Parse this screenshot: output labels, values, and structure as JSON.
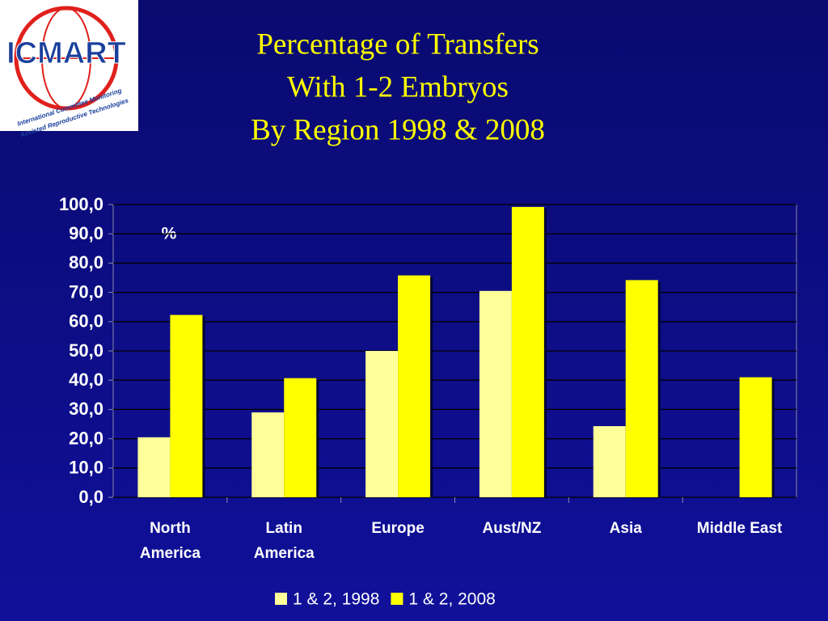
{
  "logo": {
    "name": "ICMART",
    "text": [
      "International Committee Monitoring",
      "Assisted Reproductive Technologies"
    ]
  },
  "chart_data": {
    "type": "bar",
    "title": [
      "Percentage of Transfers",
      "With 1-2 Embryos",
      "By Region 1998 & 2008"
    ],
    "annotation": "%",
    "categories": [
      [
        "North",
        "America"
      ],
      [
        "Latin",
        "America"
      ],
      [
        "Europe"
      ],
      [
        "Aust/NZ"
      ],
      [
        "Asia"
      ],
      [
        "Middle East"
      ]
    ],
    "series": [
      {
        "name": "1 & 2, 1998",
        "color": "#ffff99",
        "values": [
          20.5,
          29,
          50,
          70.5,
          24.3,
          null
        ]
      },
      {
        "name": "1 & 2, 2008",
        "color": "#ffff00",
        "values": [
          62.3,
          40.7,
          75.8,
          99.2,
          74.2,
          41
        ]
      }
    ],
    "ylim": [
      0,
      100
    ],
    "yticks": [
      {
        "value": 0,
        "label": "0,0"
      },
      {
        "value": 10,
        "label": "10,0"
      },
      {
        "value": 20,
        "label": "20,0"
      },
      {
        "value": 30,
        "label": "30,0"
      },
      {
        "value": 40,
        "label": "40,0"
      },
      {
        "value": 50,
        "label": "50,0"
      },
      {
        "value": 60,
        "label": "60,0"
      },
      {
        "value": 70,
        "label": "70,0"
      },
      {
        "value": 80,
        "label": "80,0"
      },
      {
        "value": 90,
        "label": "90,0"
      },
      {
        "value": 100,
        "label": "100,0"
      }
    ],
    "grid": true
  }
}
